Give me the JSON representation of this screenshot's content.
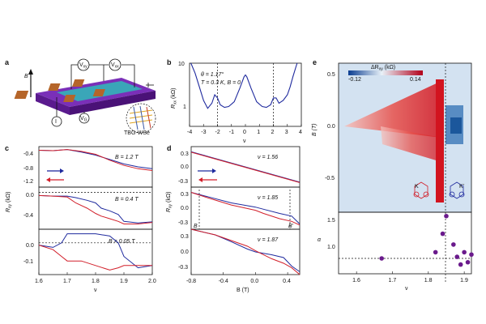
{
  "colors": {
    "blue": "#1f2a9e",
    "red": "#d21f2a",
    "purple": "#6a1a8c",
    "map_neg": "#1f5fa8",
    "map_pos": "#c8161e",
    "map_zero": "#cfe0f0"
  },
  "panels": {
    "a": "a",
    "b": "b",
    "c": "c",
    "d": "d",
    "e": "e"
  },
  "panel_a": {
    "labels": {
      "B": "B",
      "vxy": "V",
      "vxy_sub": "xy",
      "vxx": "V",
      "vxx_sub": "xx",
      "i": "I",
      "vg": "V",
      "vg_sub": "G",
      "tbg": "TBG-WSe"
    }
  },
  "chart_data": [
    {
      "id": "b",
      "type": "line",
      "xlabel": "ν",
      "ylabel": "R",
      "ylabel_sub": "xx",
      "ylabel_unit": "(kΩ)",
      "xticks": [
        "-4",
        "-3",
        "-2",
        "-1",
        "0",
        "1",
        "2",
        "3",
        "4"
      ],
      "yticks": [
        "10",
        "1"
      ],
      "xlim": [
        -4,
        4
      ],
      "ylim": [
        0.4,
        10
      ],
      "scale_y": "log",
      "annotations": [
        "θ = 1.17°",
        "T = 0.3 K, B = 0"
      ],
      "markers_x": [
        -2,
        2
      ],
      "x": [
        -3.9,
        -3.6,
        -3.3,
        -3.0,
        -2.7,
        -2.4,
        -2.2,
        -2.0,
        -1.8,
        -1.5,
        -1.2,
        -0.8,
        -0.4,
        -0.1,
        0,
        0.1,
        0.4,
        0.8,
        1.2,
        1.5,
        1.8,
        2.0,
        2.2,
        2.4,
        2.7,
        3.0,
        3.2,
        3.4,
        3.6,
        3.7
      ],
      "y": [
        10,
        6,
        3,
        1.5,
        1.0,
        1.3,
        2.0,
        1.7,
        1.2,
        1.05,
        1.1,
        1.4,
        2.8,
        5.0,
        5.5,
        5.0,
        2.8,
        1.4,
        1.1,
        1.05,
        1.2,
        1.7,
        1.7,
        1.3,
        1.5,
        2.0,
        3.0,
        5.0,
        8.0,
        10
      ]
    },
    {
      "id": "c",
      "type": "line",
      "xlabel": "ν",
      "ylabel": "R",
      "ylabel_sub": "xy",
      "ylabel_unit": "(kΩ)",
      "xticks": [
        "1.6",
        "1.7",
        "1.8",
        "1.9",
        "2.0"
      ],
      "xlim": [
        1.6,
        2.0
      ],
      "subplots": [
        {
          "label": "B = 1.2 T",
          "yticks": [
            "-0.4",
            "-0.8",
            "-1.2"
          ],
          "ylim": [
            -1.35,
            -0.25
          ],
          "series": [
            {
              "name": "blue",
              "x": [
                1.6,
                1.65,
                1.7,
                1.75,
                1.8,
                1.85,
                1.9,
                1.95,
                2.0
              ],
              "values": [
                -0.35,
                -0.36,
                -0.33,
                -0.4,
                -0.48,
                -0.6,
                -0.72,
                -0.8,
                -0.85
              ]
            },
            {
              "name": "red",
              "x": [
                1.6,
                1.65,
                1.7,
                1.75,
                1.8,
                1.85,
                1.9,
                1.95,
                2.0
              ],
              "values": [
                -0.35,
                -0.36,
                -0.33,
                -0.38,
                -0.46,
                -0.62,
                -0.76,
                -0.85,
                -0.9
              ]
            }
          ]
        },
        {
          "label": "B = 0.4 T",
          "yticks": [
            "0.0",
            "-0.4"
          ],
          "ylim": [
            -0.7,
            0.1
          ],
          "series": [
            {
              "name": "blue",
              "x": [
                1.6,
                1.65,
                1.7,
                1.73,
                1.77,
                1.8,
                1.82,
                1.85,
                1.88,
                1.9,
                1.95,
                2.0
              ],
              "values": [
                -0.06,
                -0.07,
                -0.07,
                -0.1,
                -0.15,
                -0.2,
                -0.3,
                -0.35,
                -0.42,
                -0.55,
                -0.58,
                -0.56
              ]
            },
            {
              "name": "red",
              "x": [
                1.6,
                1.65,
                1.7,
                1.73,
                1.77,
                1.8,
                1.82,
                1.85,
                1.88,
                1.9,
                1.95,
                2.0
              ],
              "values": [
                -0.06,
                -0.07,
                -0.09,
                -0.2,
                -0.3,
                -0.4,
                -0.45,
                -0.5,
                -0.55,
                -0.6,
                -0.6,
                -0.57
              ]
            }
          ]
        },
        {
          "label": "B = 0.05 T",
          "yticks": [
            "0.0",
            "-0.1"
          ],
          "ylim": [
            -0.14,
            0.06
          ],
          "series": [
            {
              "name": "blue",
              "x": [
                1.6,
                1.65,
                1.68,
                1.7,
                1.75,
                1.8,
                1.85,
                1.88,
                1.9,
                1.95,
                2.0
              ],
              "values": [
                -0.01,
                -0.02,
                0.0,
                0.04,
                0.04,
                0.04,
                0.03,
                0.0,
                -0.06,
                -0.11,
                -0.1
              ]
            },
            {
              "name": "red",
              "x": [
                1.6,
                1.65,
                1.68,
                1.7,
                1.75,
                1.8,
                1.85,
                1.88,
                1.9,
                1.95,
                2.0
              ],
              "values": [
                -0.01,
                -0.03,
                -0.06,
                -0.08,
                -0.08,
                -0.1,
                -0.12,
                -0.11,
                -0.1,
                -0.1,
                -0.1
              ]
            }
          ]
        }
      ]
    },
    {
      "id": "d",
      "type": "line",
      "xlabel": "B (T)",
      "ylabel": "R",
      "ylabel_sub": "xy",
      "ylabel_unit": "(kΩ)",
      "xticks": [
        "-0.8",
        "-0.4",
        "0.0",
        "0.4"
      ],
      "xlim": [
        -0.8,
        0.55
      ],
      "subplots": [
        {
          "label": "ν = 1.56",
          "yticks": [
            "0.3",
            "0.0",
            "-0.3"
          ],
          "ylim": [
            -0.4,
            0.4
          ],
          "series": [
            {
              "name": "blue",
              "x": [
                -0.8,
                0.55
              ],
              "values": [
                0.3,
                -0.3
              ]
            },
            {
              "name": "red",
              "x": [
                -0.8,
                0.55
              ],
              "values": [
                0.29,
                -0.31
              ]
            }
          ]
        },
        {
          "label": "ν = 1.85",
          "yticks": [
            "0.3",
            "0.0",
            "-0.3"
          ],
          "ylim": [
            -0.4,
            0.4
          ],
          "markers": [
            "B",
            "B'"
          ],
          "series": [
            {
              "name": "blue",
              "x": [
                -0.8,
                -0.6,
                -0.3,
                0.0,
                0.1,
                0.3,
                0.45,
                0.55
              ],
              "values": [
                0.3,
                0.22,
                0.1,
                0.02,
                -0.02,
                -0.1,
                -0.15,
                -0.3
              ]
            },
            {
              "name": "red",
              "x": [
                -0.8,
                -0.6,
                -0.3,
                0.0,
                0.1,
                0.3,
                0.45,
                0.55
              ],
              "values": [
                0.3,
                0.2,
                0.06,
                -0.04,
                -0.1,
                -0.2,
                -0.25,
                -0.32
              ]
            }
          ]
        },
        {
          "label": "ν = 1.87",
          "yticks": [
            "0.3",
            "0.0",
            "-0.3"
          ],
          "ylim": [
            -0.4,
            0.4
          ],
          "series": [
            {
              "name": "blue",
              "x": [
                -0.8,
                -0.5,
                -0.3,
                -0.1,
                0.0,
                0.2,
                0.35,
                0.45,
                0.55
              ],
              "values": [
                0.4,
                0.3,
                0.18,
                0.05,
                0.0,
                -0.05,
                -0.1,
                -0.25,
                -0.35
              ]
            },
            {
              "name": "red",
              "x": [
                -0.8,
                -0.5,
                -0.3,
                -0.1,
                0.0,
                0.2,
                0.35,
                0.45,
                0.55
              ],
              "values": [
                0.4,
                0.3,
                0.2,
                0.1,
                0.02,
                -0.12,
                -0.2,
                -0.28,
                -0.4
              ]
            }
          ]
        }
      ]
    },
    {
      "id": "e_map",
      "type": "heatmap",
      "xlabel": "ν",
      "ylabel": "B (T)",
      "yticks": [
        "0.5",
        "0.0",
        "-0.5"
      ],
      "ylim": [
        -0.75,
        0.6
      ],
      "colorbar": {
        "label": "ΔR",
        "label_sub": "xy",
        "unit": "(kΩ)",
        "min": "-0.12",
        "max": "0.14"
      },
      "insets": [
        "K",
        "K'"
      ],
      "transition_nu": 1.85
    },
    {
      "id": "e_alpha",
      "type": "scatter",
      "xlabel": "ν",
      "ylabel": "α",
      "xticks": [
        "1.6",
        "1.7",
        "1.8",
        "1.9"
      ],
      "xlim": [
        1.55,
        1.92
      ],
      "yticks": [
        "1.5",
        "1.0"
      ],
      "ylim": [
        0.8,
        1.6
      ],
      "reference_y": 1.0,
      "x": [
        1.67,
        1.82,
        1.84,
        1.85,
        1.87,
        1.88,
        1.89,
        1.9,
        1.91,
        1.92
      ],
      "y": [
        1.0,
        1.08,
        1.32,
        1.55,
        1.18,
        1.02,
        0.92,
        1.08,
        0.95,
        1.05
      ]
    }
  ]
}
